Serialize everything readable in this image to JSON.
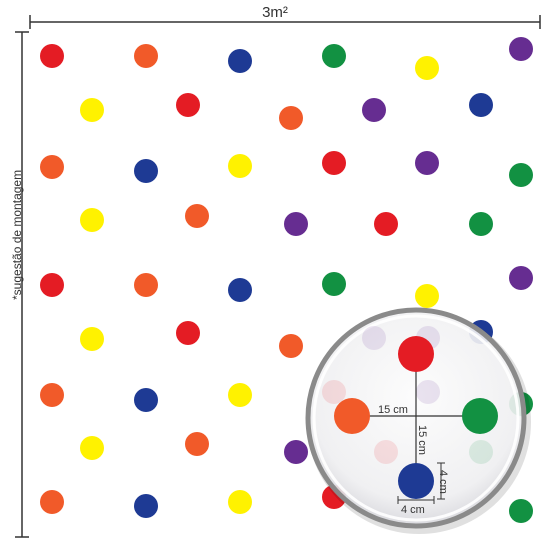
{
  "labels": {
    "area": "3m²",
    "side_note": "*sugestão de montagem",
    "spacing_horizontal": "15 cm",
    "spacing_vertical": "15 cm",
    "dot_diameter_horizontal": "4 cm",
    "dot_diameter_vertical": "4 cm"
  },
  "colors": {
    "red": "#e41c24",
    "orange": "#f15a29",
    "blue": "#1e3a94",
    "green": "#129142",
    "yellow": "#fff200",
    "purple": "#662d91",
    "line": "#333333",
    "magnifier_rim": "#8a8a8a"
  },
  "magnifier_dots": [
    "red",
    "orange",
    "green",
    "blue"
  ]
}
